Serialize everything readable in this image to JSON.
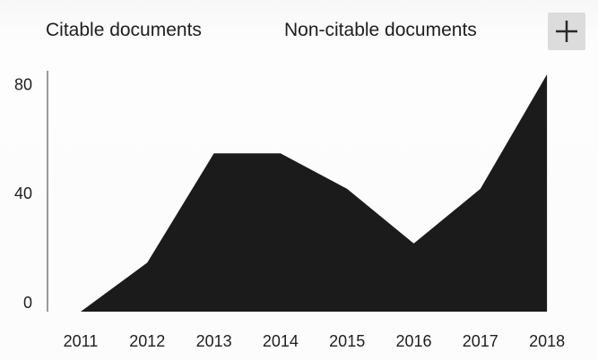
{
  "legend": [
    {
      "label": "Citable documents"
    },
    {
      "label": "Non-citable documents"
    }
  ],
  "expand_icon": "plus-icon",
  "chart_data": {
    "type": "area",
    "title": "",
    "xlabel": "",
    "ylabel": "",
    "categories": [
      "2011",
      "2012",
      "2013",
      "2014",
      "2015",
      "2016",
      "2017",
      "2018"
    ],
    "series": [
      {
        "name": "Citable documents",
        "values": [
          0,
          18,
          58,
          58,
          45,
          25,
          45,
          87
        ]
      },
      {
        "name": "Non-citable documents",
        "values": [
          0,
          0,
          0,
          0,
          0,
          0,
          0,
          0
        ]
      }
    ],
    "yticks": [
      0,
      40,
      80
    ],
    "ylim": [
      0,
      87
    ],
    "grid": false,
    "legend_position": "top",
    "colors": {
      "area": "#1b1b1b",
      "axis": "#3a3a3a"
    }
  }
}
